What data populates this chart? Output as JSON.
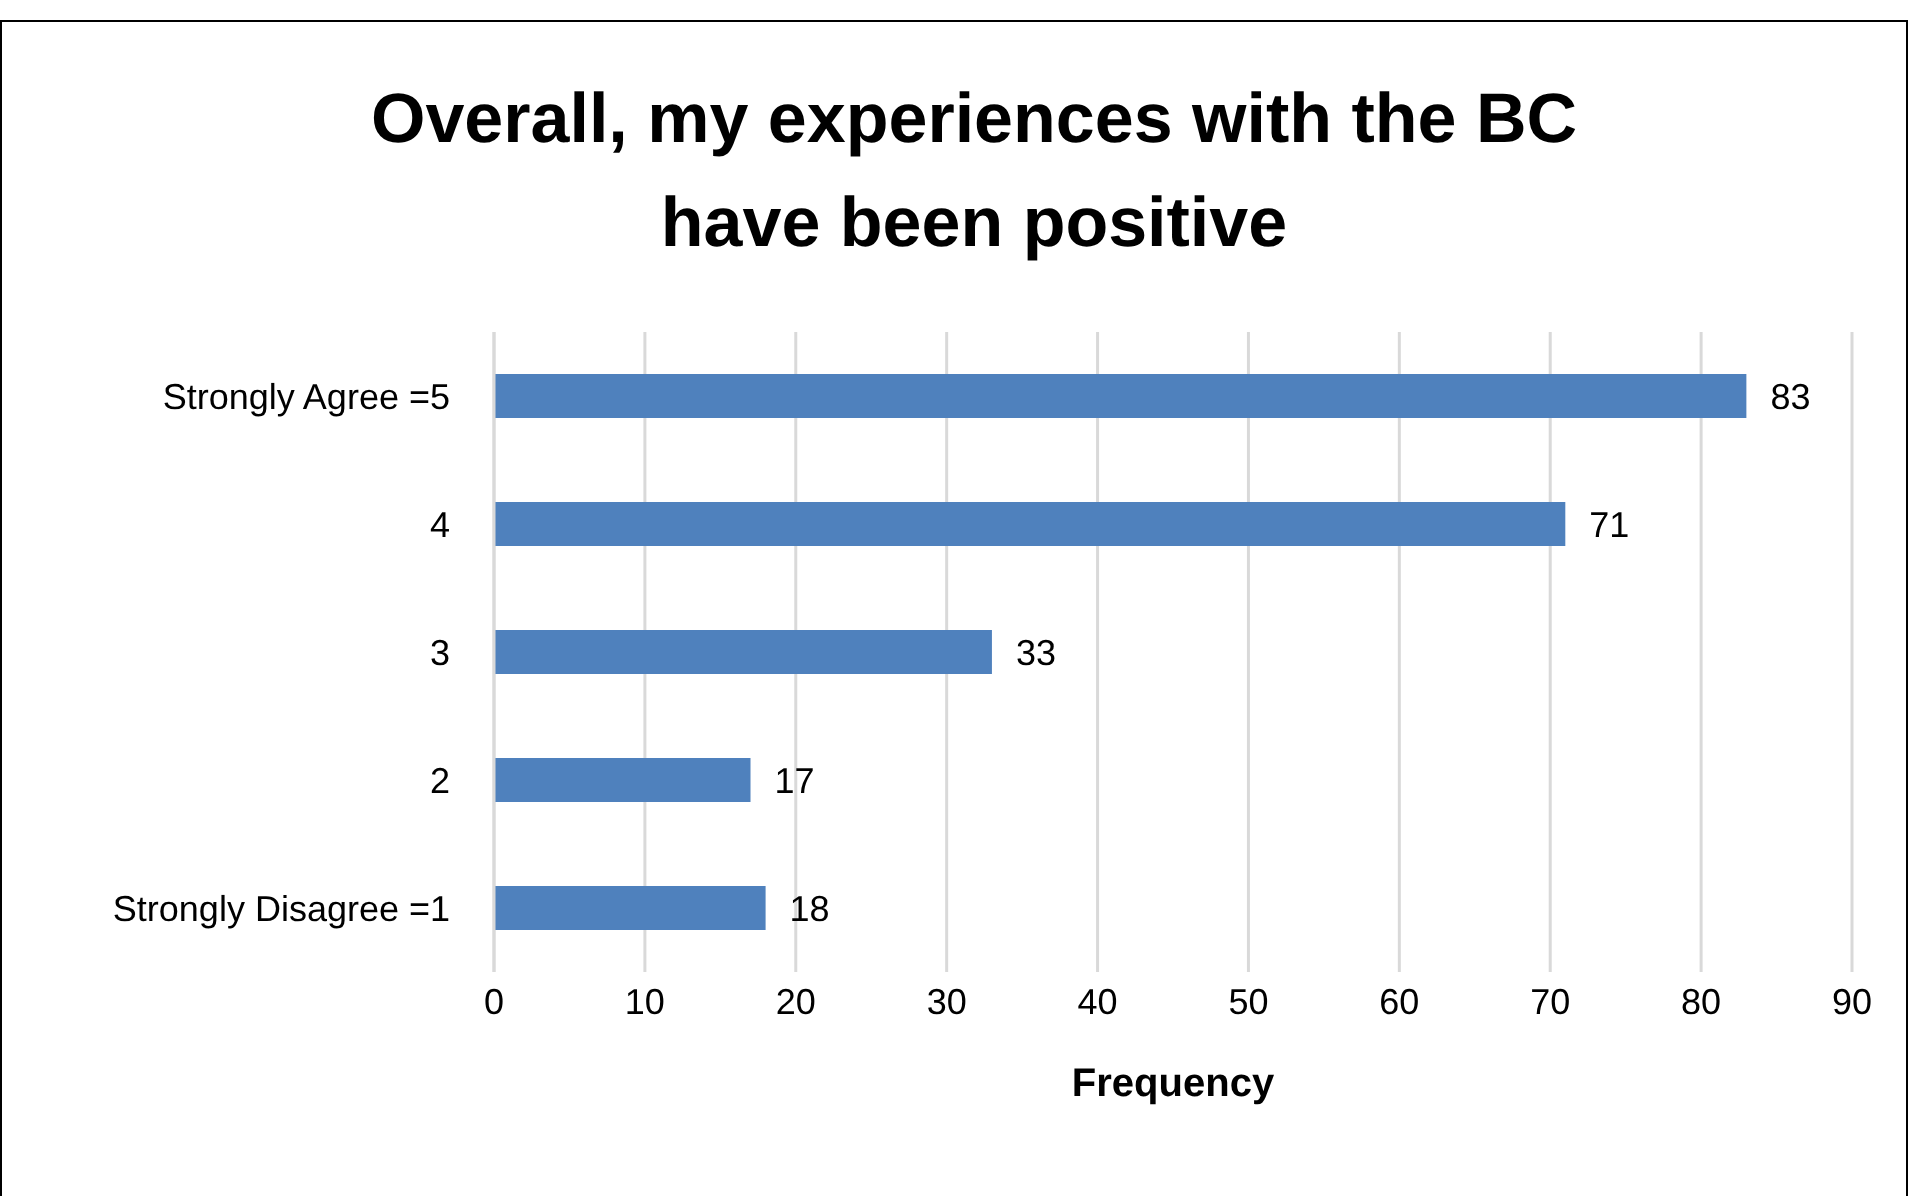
{
  "chart_data": {
    "type": "bar",
    "orientation": "horizontal",
    "title": "Overall, my experiences with the BC have been positive",
    "xlabel": "Frequency",
    "categories": [
      "Strongly Agree =5",
      "4",
      "3",
      "2",
      "Strongly Disagree =1"
    ],
    "values": [
      83,
      71,
      33,
      17,
      18
    ],
    "color": "#4f81bd",
    "xlim": [
      0,
      90
    ],
    "xticks": [
      0,
      10,
      20,
      30,
      40,
      50,
      60,
      70,
      80,
      90
    ],
    "grid": "x",
    "data_labels": true
  }
}
